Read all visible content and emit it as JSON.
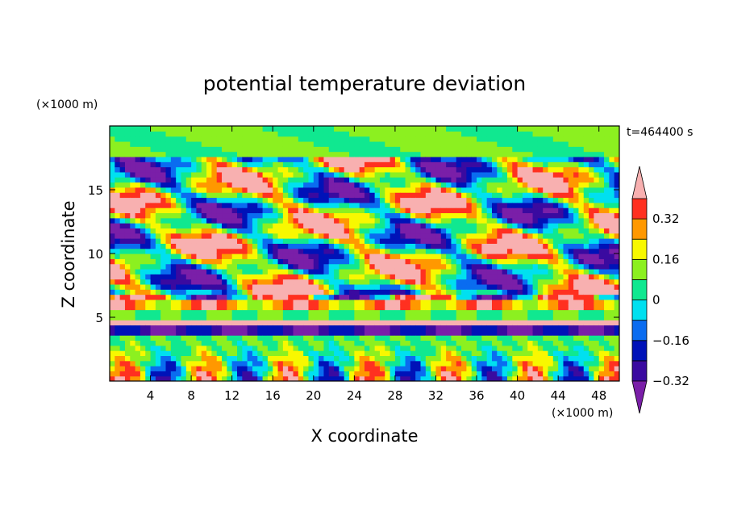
{
  "chart_data": {
    "type": "heatmap",
    "title": "potential temperature deviation",
    "xlabel": "X coordinate",
    "ylabel": "Z coordinate",
    "x_units": "(×1000 m)",
    "y_units": "(×1000 m)",
    "time_label": "t=464400 s",
    "xlim": [
      0,
      50
    ],
    "ylim": [
      0,
      20
    ],
    "x_ticks": [
      4,
      8,
      12,
      16,
      20,
      24,
      28,
      32,
      36,
      40,
      44,
      48
    ],
    "y_ticks": [
      5,
      10,
      15
    ],
    "colorbar": {
      "levels": [
        -0.4,
        -0.32,
        -0.24,
        -0.16,
        -0.08,
        0,
        0.08,
        0.16,
        0.24,
        0.32,
        0.4
      ],
      "labeled_levels": [
        -0.32,
        -0.16,
        0,
        0.16,
        0.32
      ],
      "labels": [
        "−0.32",
        "−0.16",
        "0",
        "0.16",
        "0.32"
      ],
      "colors": [
        "#7a1fa8",
        "#3a0aa0",
        "#0012b8",
        "#0a6cf0",
        "#00e0f0",
        "#10e890",
        "#8cf020",
        "#f8f800",
        "#ff9800",
        "#ff3020",
        "#f8b0b0"
      ],
      "extend": "both"
    }
  }
}
